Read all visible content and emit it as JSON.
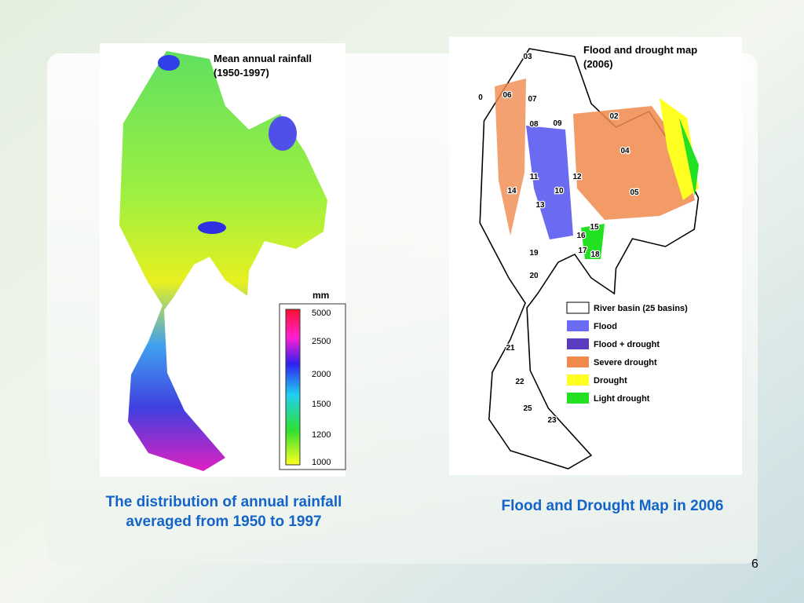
{
  "rainfall_map": {
    "title": [
      "Mean annual rainfall",
      "(1950-1997)"
    ],
    "legend_unit": "mm",
    "legend_ticks": [
      5000,
      2500,
      2000,
      1500,
      1200,
      1000
    ],
    "caption": [
      "The distribution of annual rainfall",
      "averaged from 1950 to 1997"
    ]
  },
  "drought_map": {
    "title": [
      "Flood and drought map",
      "(2006)"
    ],
    "basins": [
      "03",
      "06",
      "07",
      "0",
      "08",
      "09",
      "02",
      "04",
      "05",
      "11",
      "12",
      "10",
      "14",
      "13",
      "16",
      "15",
      "17",
      "18",
      "19",
      "20",
      "21",
      "22",
      "25",
      "23"
    ],
    "legend": [
      {
        "label": "River basin (25 basins)",
        "color": "#ffffff"
      },
      {
        "label": "Flood",
        "color": "#6b6bf2"
      },
      {
        "label": "Flood + drought",
        "color": "#5a3cc0"
      },
      {
        "label": "Severe drought",
        "color": "#f08a4c"
      },
      {
        "label": "Drought",
        "color": "#ffff22"
      },
      {
        "label": "Light drought",
        "color": "#22e022"
      }
    ],
    "caption": "Flood and Drought Map in 2006"
  },
  "page_number": "6"
}
